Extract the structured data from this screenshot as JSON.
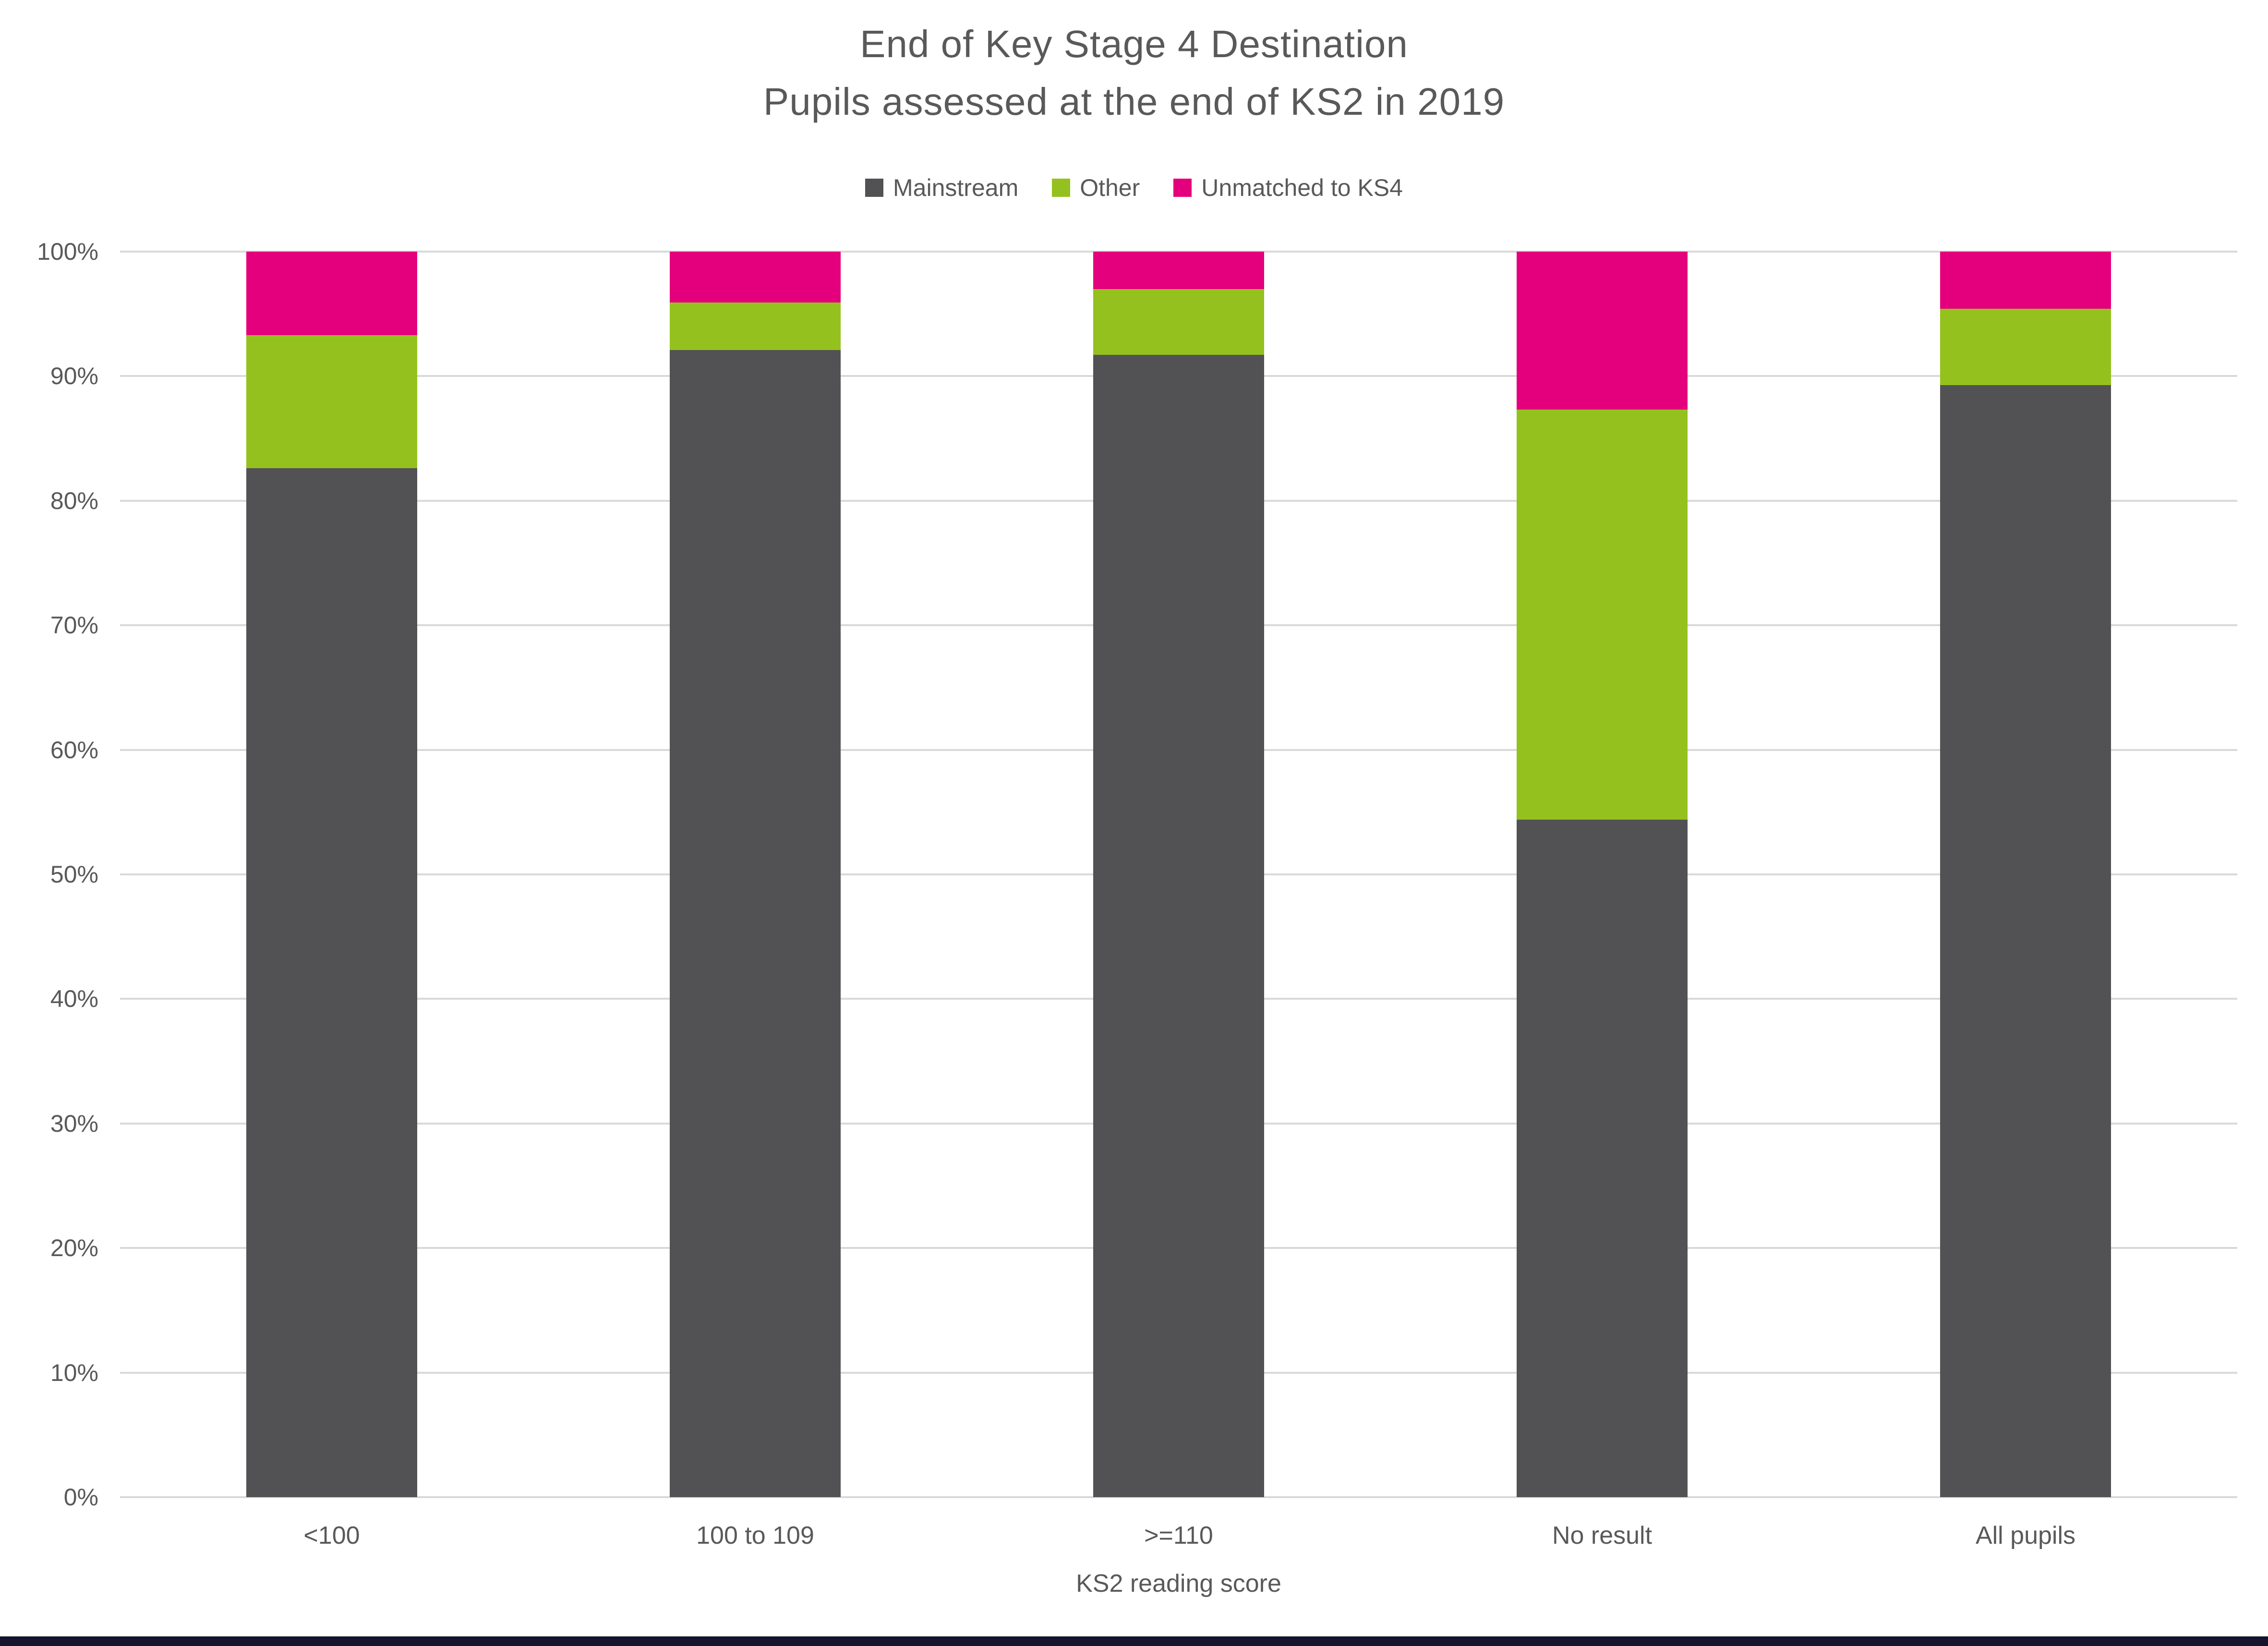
{
  "title": {
    "line1": "End of Key Stage 4 Destination",
    "line2": "Pupils assessed at the end of KS2 in 2019"
  },
  "y_axis": {
    "ticks": [
      "0%",
      "10%",
      "20%",
      "30%",
      "40%",
      "50%",
      "60%",
      "70%",
      "80%",
      "90%",
      "100%"
    ],
    "min": 0,
    "max": 100
  },
  "x_axis": {
    "title": "KS2 reading score"
  },
  "colors": {
    "gridline": "#d9d9d9",
    "text": "#595959",
    "footer_bar": "#14142c",
    "mainstream": "#525254",
    "other": "#94c11e",
    "unmatched": "#e4007c"
  },
  "chart_data": {
    "type": "bar",
    "stacked": true,
    "stacked_percent": true,
    "title": "End of Key Stage 4 Destination - Pupils assessed at the end of KS2 in 2019",
    "categories": [
      "<100",
      "100 to 109",
      ">=110",
      "No result",
      "All pupils"
    ],
    "series": [
      {
        "name": "Mainstream",
        "color": "#525254",
        "values": [
          82.6,
          92.1,
          91.7,
          54.4,
          89.3
        ]
      },
      {
        "name": "Other",
        "color": "#94c11e",
        "values": [
          10.7,
          3.8,
          5.3,
          32.9,
          6.1
        ]
      },
      {
        "name": "Unmatched to KS4",
        "color": "#e4007c",
        "values": [
          6.7,
          4.1,
          3.0,
          12.7,
          4.6
        ]
      }
    ],
    "xlabel": "KS2 reading score",
    "ylabel": "",
    "ylim": [
      0,
      100
    ],
    "grid": true,
    "legend_position": "top"
  }
}
